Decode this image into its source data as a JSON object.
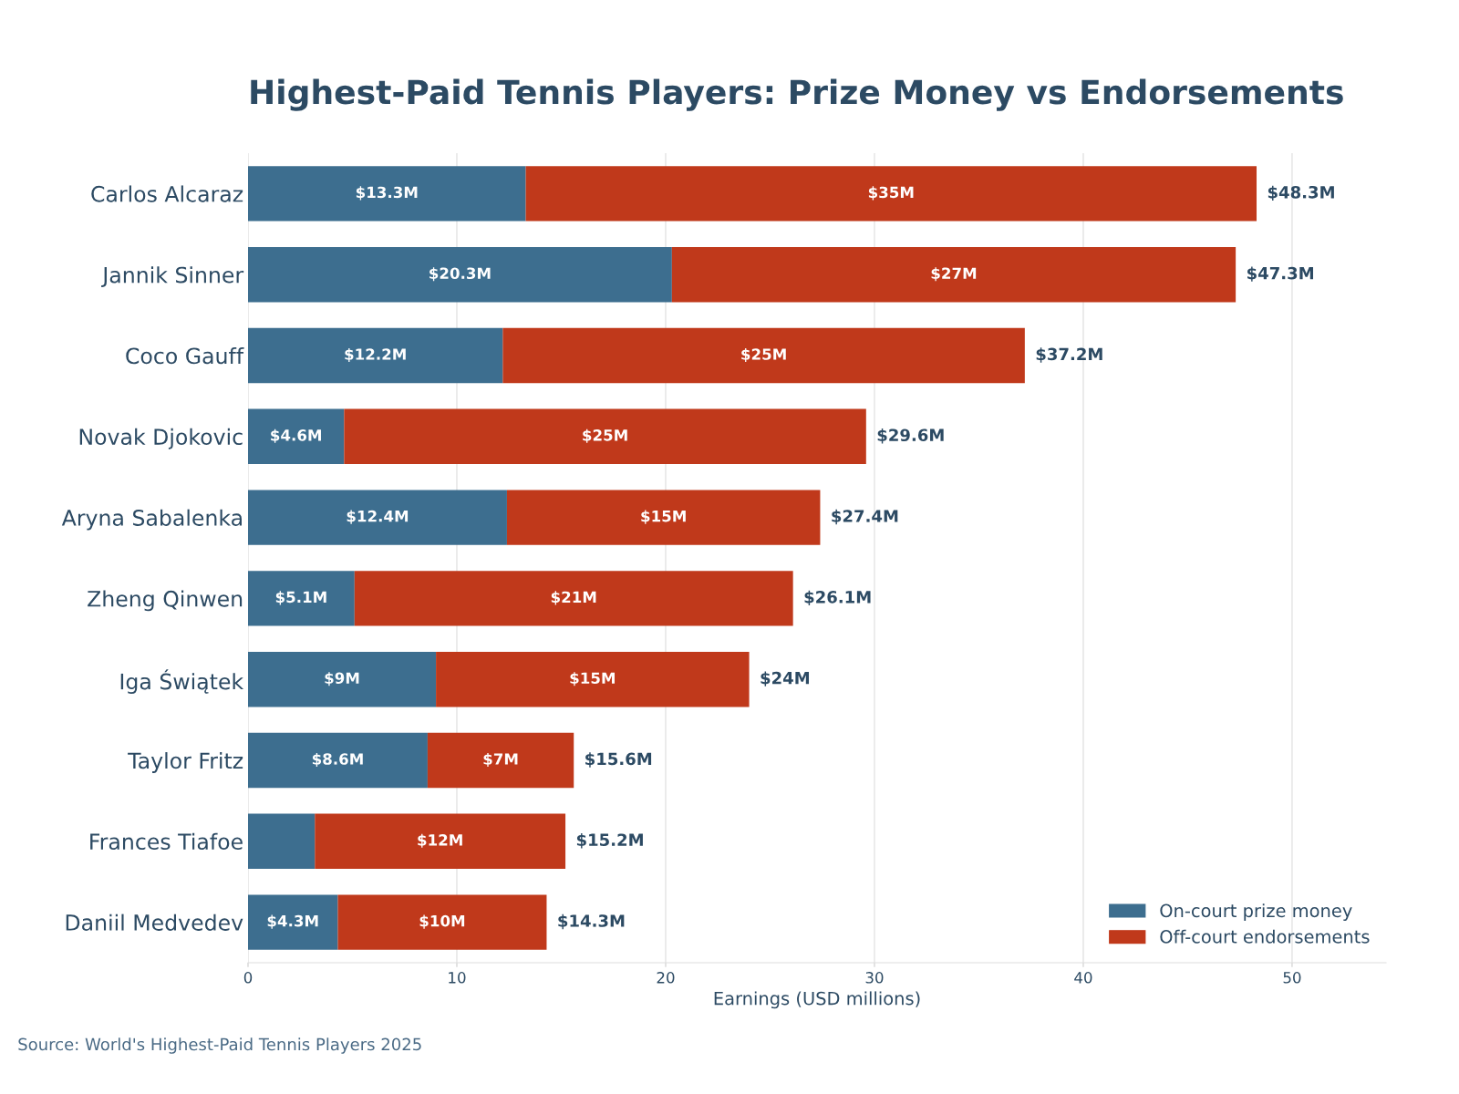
{
  "chart_data": {
    "type": "bar",
    "orientation": "horizontal",
    "stacked": true,
    "title": "Highest-Paid Tennis Players: Prize Money vs Endorsements",
    "xlabel": "Earnings (USD millions)",
    "categories": [
      "Carlos Alcaraz",
      "Jannik Sinner",
      "Coco Gauff",
      "Novak Djokovic",
      "Aryna Sabalenka",
      "Zheng Qinwen",
      "Iga Świątek",
      "Taylor Fritz",
      "Frances Tiafoe",
      "Daniil Medvedev"
    ],
    "series": [
      {
        "name": "On-court prize money",
        "color": "#3d6e8f",
        "values": [
          13.3,
          20.3,
          12.2,
          4.6,
          12.4,
          5.1,
          9,
          8.6,
          3.2,
          4.3
        ],
        "value_labels": [
          "$13.3M",
          "$20.3M",
          "$12.2M",
          "$4.6M",
          "$12.4M",
          "$5.1M",
          "$9M",
          "$8.6M",
          null,
          "$4.3M"
        ]
      },
      {
        "name": "Off-court endorsements",
        "color": "#c0391b",
        "values": [
          35,
          27,
          25,
          25,
          15,
          21,
          15,
          7,
          12,
          10
        ],
        "value_labels": [
          "$35M",
          "$27M",
          "$25M",
          "$25M",
          "$15M",
          "$21M",
          "$15M",
          "$7M",
          "$12M",
          "$10M"
        ]
      }
    ],
    "totals": [
      "$48.3M",
      "$47.3M",
      "$37.2M",
      "$29.6M",
      "$27.4M",
      "$26.1M",
      "$24M",
      "$15.6M",
      "$15.2M",
      "$14.3M"
    ],
    "xlim": [
      0,
      54.5
    ],
    "xticks": [
      0,
      10,
      20,
      30,
      40,
      50
    ],
    "grid": "x",
    "legend": "bottom right",
    "annotations": [
      "Source: World's Highest-Paid Tennis Players 2025"
    ]
  }
}
